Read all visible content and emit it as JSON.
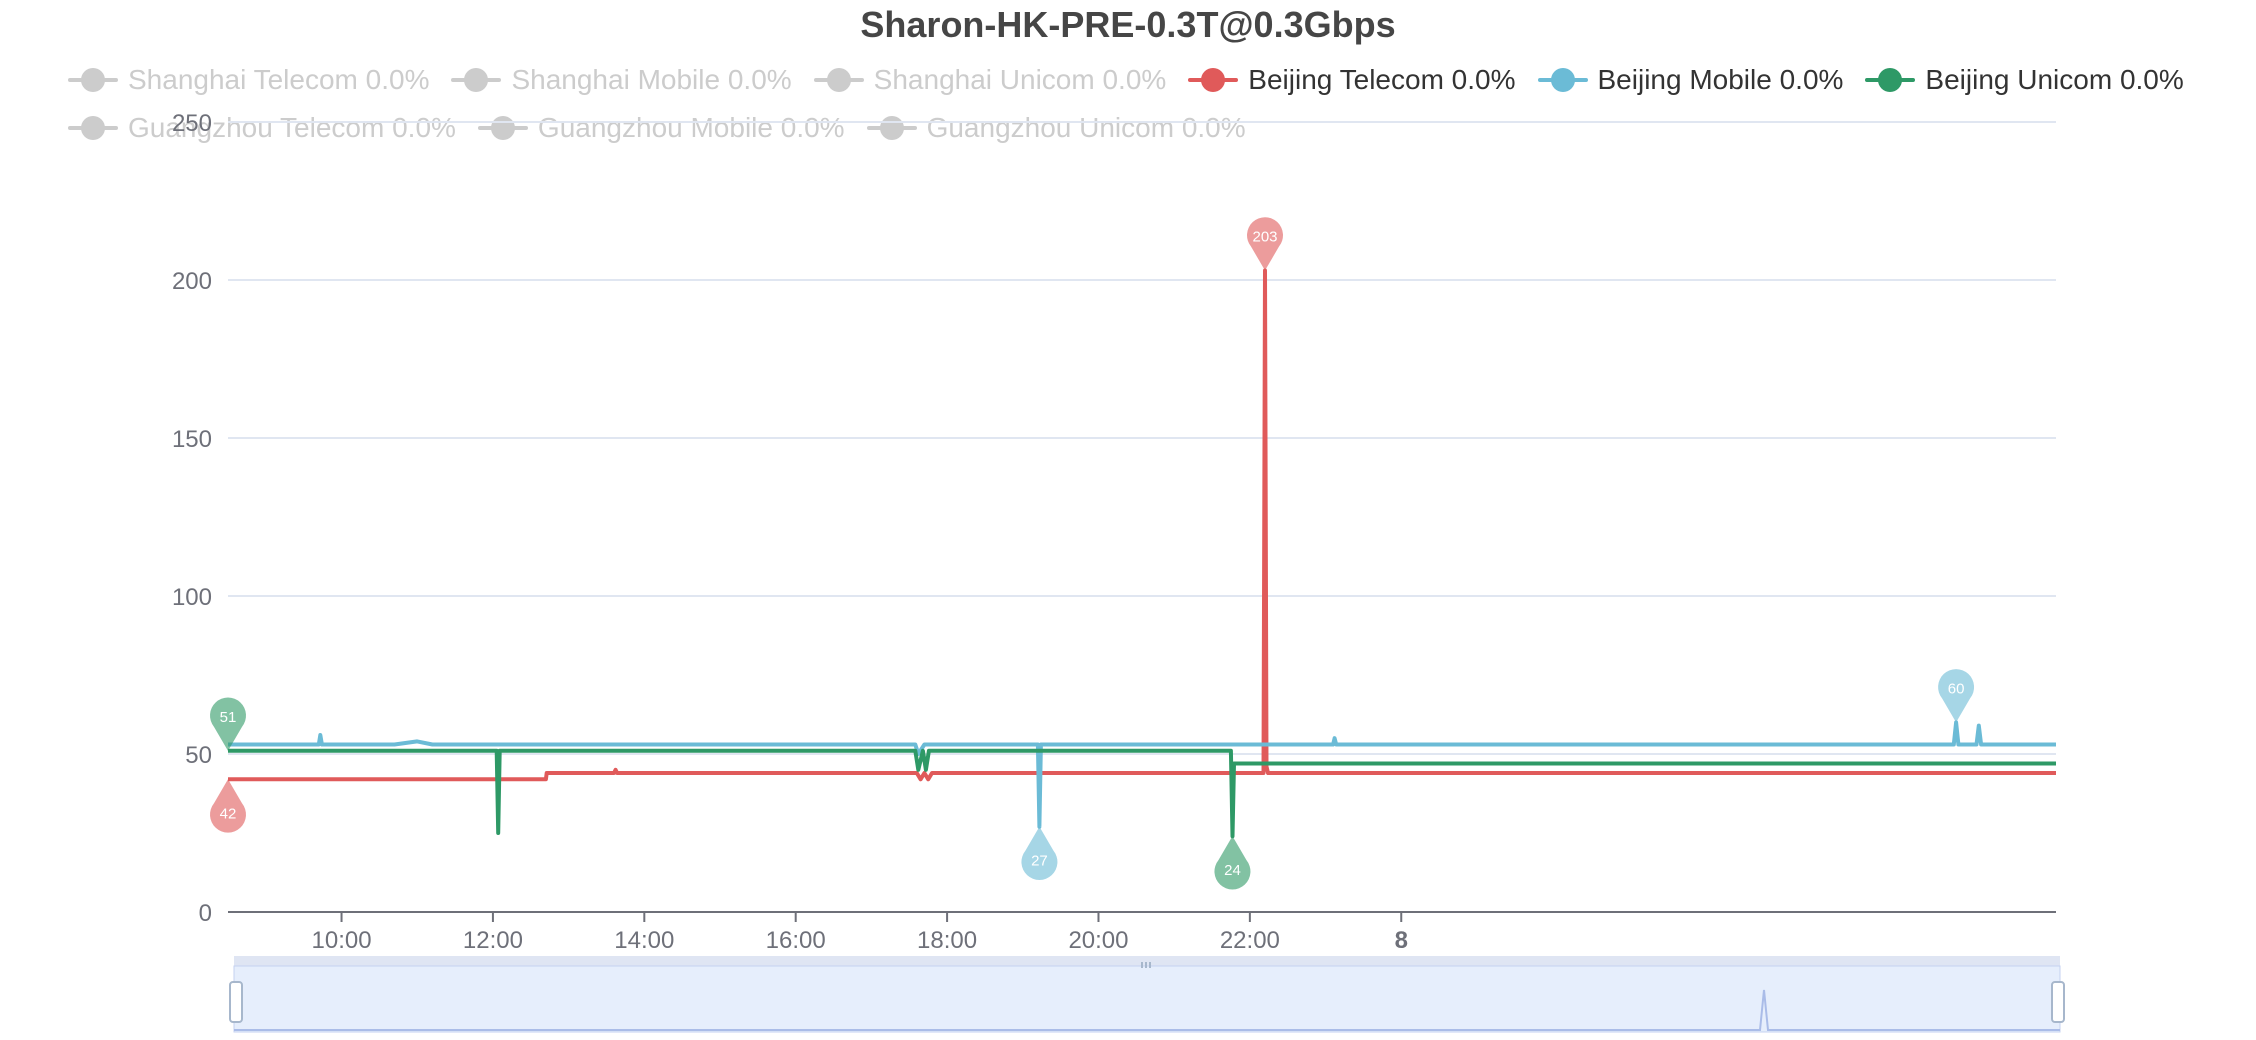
{
  "chart_data": {
    "type": "line",
    "title": "Sharon-HK-PRE-0.3T@0.3Gbps",
    "xlabel": "",
    "ylabel": "",
    "ylim": [
      0,
      250
    ],
    "y_ticks": [
      "0",
      "50",
      "100",
      "150",
      "200",
      "250"
    ],
    "x_ticks": [
      "10:00",
      "12:00",
      "14:00",
      "16:00",
      "18:00",
      "20:00",
      "22:00",
      "8"
    ],
    "x_tick_hours": [
      10,
      12,
      14,
      16,
      18,
      20,
      22,
      24
    ],
    "x_range_hours": [
      8.5,
      32.65
    ],
    "grid": true,
    "legend_position": "top",
    "legend": [
      {
        "label": "Shanghai Telecom 0.0%",
        "active": false,
        "color": "#cccccc"
      },
      {
        "label": "Shanghai Mobile 0.0%",
        "active": false,
        "color": "#cccccc"
      },
      {
        "label": "Shanghai Unicom 0.0%",
        "active": false,
        "color": "#cccccc"
      },
      {
        "label": "Beijing Telecom 0.0%",
        "active": true,
        "color": "#e05a5a"
      },
      {
        "label": "Beijing Mobile 0.0%",
        "active": true,
        "color": "#6bbbd6"
      },
      {
        "label": "Beijing Unicom 0.0%",
        "active": true,
        "color": "#2e9966"
      },
      {
        "label": "Guangzhou Telecom 0.0%",
        "active": false,
        "color": "#cccccc"
      },
      {
        "label": "Guangzhou Mobile 0.0%",
        "active": false,
        "color": "#cccccc"
      },
      {
        "label": "Guangzhou Unicom 0.0%",
        "active": false,
        "color": "#cccccc"
      }
    ],
    "series": [
      {
        "name": "Beijing Telecom",
        "color": "#e05a5a",
        "x": [
          8.5,
          12.7,
          12.71,
          13.6,
          13.62,
          13.64,
          17.6,
          17.65,
          17.7,
          17.75,
          17.8,
          22.18,
          22.2,
          22.22,
          22.24,
          32.65
        ],
        "y": [
          42,
          42,
          44,
          44,
          45,
          44,
          44,
          42,
          44,
          42,
          44,
          44,
          203,
          46,
          44,
          44
        ],
        "markers": [
          {
            "type": "min",
            "label": "42",
            "x": 8.5,
            "y": 42
          },
          {
            "type": "max",
            "label": "203",
            "x": 22.2,
            "y": 203
          }
        ]
      },
      {
        "name": "Beijing Mobile",
        "color": "#6bbbd6",
        "x": [
          8.5,
          9.7,
          9.72,
          9.74,
          10.7,
          11.0,
          11.2,
          17.58,
          17.62,
          17.7,
          19.2,
          19.22,
          19.24,
          23.1,
          23.12,
          23.14,
          31.3,
          31.33,
          31.36,
          31.6,
          31.63,
          31.66,
          32.65
        ],
        "y": [
          53,
          53,
          56,
          53,
          53,
          54,
          53,
          53,
          50,
          53,
          53,
          27,
          53,
          53,
          55,
          53,
          53,
          60,
          53,
          53,
          59,
          53,
          53
        ],
        "markers": [
          {
            "type": "min",
            "label": "27",
            "x": 19.22,
            "y": 27
          },
          {
            "type": "max",
            "label": "60",
            "x": 31.33,
            "y": 60
          }
        ]
      },
      {
        "name": "Beijing Unicom",
        "color": "#2e9966",
        "x": [
          8.5,
          12.05,
          12.07,
          12.09,
          17.58,
          17.62,
          17.68,
          17.72,
          17.76,
          21.75,
          21.77,
          21.79,
          32.65
        ],
        "y": [
          51,
          51,
          25,
          51,
          51,
          45,
          51,
          45,
          51,
          51,
          24,
          47,
          47
        ],
        "markers": [
          {
            "type": "max",
            "label": "51",
            "x": 8.5,
            "y": 51
          },
          {
            "type": "min",
            "label": "24",
            "x": 21.77,
            "y": 24
          }
        ]
      }
    ]
  }
}
